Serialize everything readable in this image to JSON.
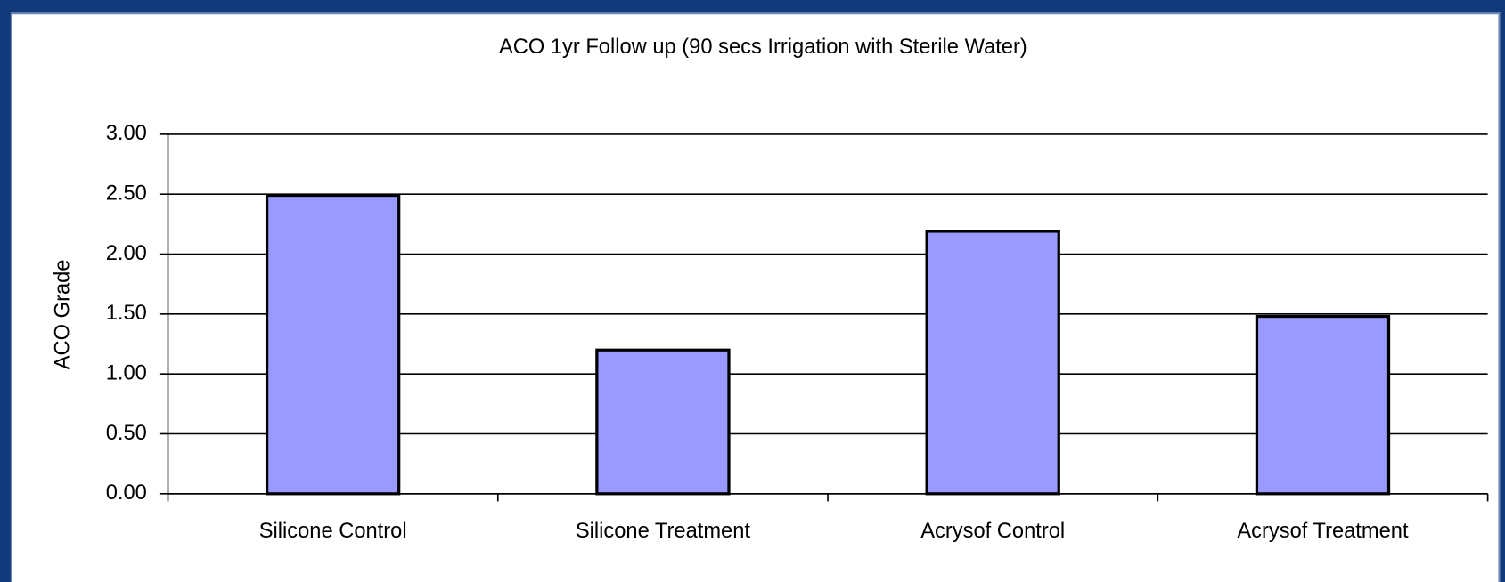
{
  "chart_data": {
    "type": "bar",
    "title": "ACO 1yr Follow up  (90 secs Irrigation with Sterile Water)",
    "y_label": "ACO Grade",
    "categories": [
      "Silicone Control",
      "Silicone Treatment",
      "Acrysof Control",
      "Acrysof Treatment"
    ],
    "values": [
      2.49,
      1.2,
      2.19,
      1.48
    ],
    "color": "#9999ff",
    "ylim": [
      0,
      3
    ],
    "yticks": [
      {
        "value": 0,
        "label": "0.00"
      },
      {
        "value": 0.5,
        "label": "0.50"
      },
      {
        "value": 1,
        "label": "1.00"
      },
      {
        "value": 1.5,
        "label": "1.50"
      },
      {
        "value": 2,
        "label": "2.00"
      },
      {
        "value": 2.5,
        "label": "2.50"
      },
      {
        "value": 3,
        "label": "3.00"
      }
    ],
    "grid": true
  }
}
